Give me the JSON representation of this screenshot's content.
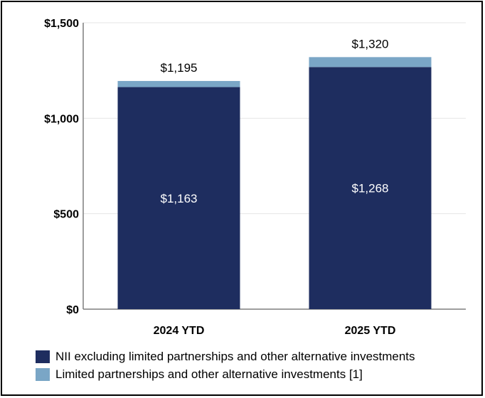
{
  "chart_data": {
    "type": "bar",
    "stacked": true,
    "categories": [
      "2024 YTD",
      "2025 YTD"
    ],
    "series": [
      {
        "name": "NII excluding limited partnerships and other alternative investments",
        "color": "#1e2d5f",
        "values": [
          1163,
          1268
        ],
        "labels": [
          "$1,163",
          "$1,268"
        ]
      },
      {
        "name": "Limited partnerships and other alternative investments [1]",
        "color": "#7aa6c6",
        "values": [
          32,
          52
        ]
      }
    ],
    "totals": [
      1195,
      1320
    ],
    "total_labels": [
      "$1,195",
      "$1,320"
    ],
    "y_ticks": [
      0,
      500,
      1000,
      1500
    ],
    "y_tick_labels": [
      "$0",
      "$500",
      "$1,000",
      "$1,500"
    ],
    "ylim": [
      0,
      1500
    ],
    "legend_position": "bottom-left"
  }
}
